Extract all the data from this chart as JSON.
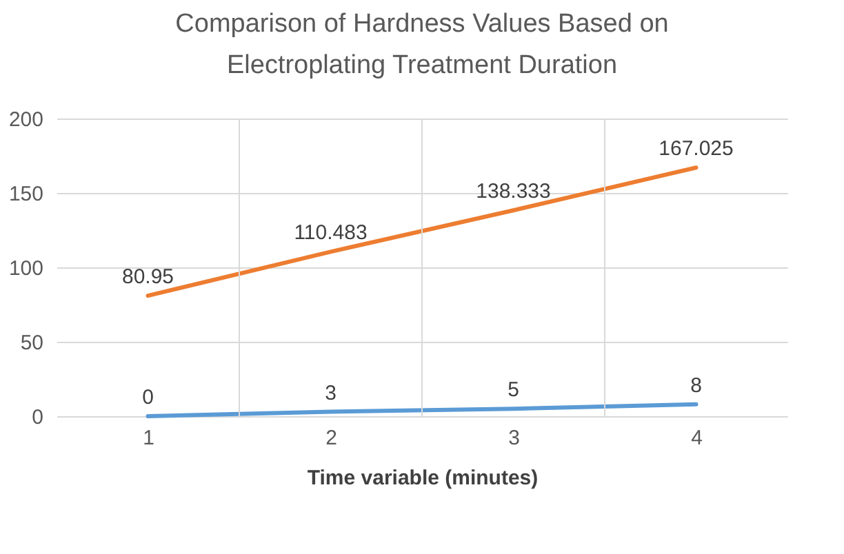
{
  "chart_data": {
    "type": "line",
    "title": [
      "Comparison of Hardness Values Based on",
      "Electroplating Treatment Duration"
    ],
    "xlabel": "Time variable (minutes)",
    "categories": [
      "1",
      "2",
      "3",
      "4"
    ],
    "series": [
      {
        "color": "#5b9bd5",
        "values": [
          0,
          3,
          5,
          8
        ]
      },
      {
        "color": "#ed7d31",
        "values": [
          80.95,
          110.483,
          138.333,
          167.025
        ]
      }
    ],
    "ylim": [
      0,
      200
    ],
    "yticks": [
      0,
      50,
      100,
      150,
      200
    ],
    "grid": true,
    "data_labels": true,
    "marker": "none",
    "line_style": "solid",
    "legend": false
  }
}
